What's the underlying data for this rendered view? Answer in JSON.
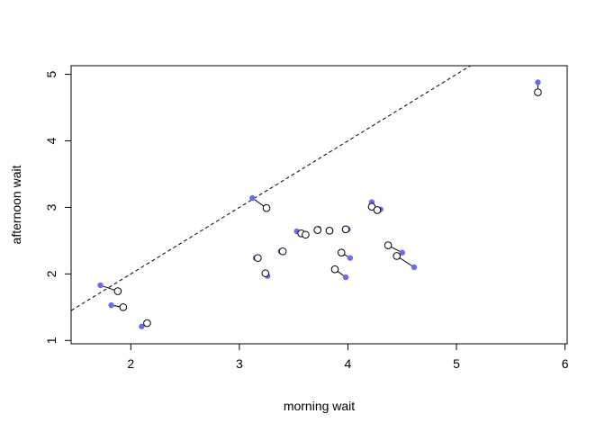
{
  "chart_data": {
    "type": "scatter",
    "title": "",
    "xlabel": "morning wait",
    "ylabel": "afternoon wait",
    "xlim": [
      1.45,
      6.02
    ],
    "ylim": [
      0.95,
      5.13
    ],
    "xticks": [
      2,
      3,
      4,
      5,
      6
    ],
    "yticks": [
      1,
      2,
      3,
      4,
      5
    ],
    "grid": false,
    "legend": "none",
    "reference_line": {
      "style": "dashed",
      "intercept": 0,
      "slope": 1
    },
    "colors": {
      "filled": "#6b6bf0",
      "open": "#000000",
      "segment": "#000000",
      "reference": "#000000"
    },
    "series": [
      {
        "marker": "filled-circle",
        "points": [
          {
            "x": 1.72,
            "y": 1.83
          },
          {
            "x": 1.82,
            "y": 1.53
          },
          {
            "x": 2.1,
            "y": 1.21
          },
          {
            "x": 3.12,
            "y": 3.14
          },
          {
            "x": 3.15,
            "y": 2.24
          },
          {
            "x": 3.26,
            "y": 1.97
          },
          {
            "x": 3.38,
            "y": 2.34
          },
          {
            "x": 3.53,
            "y": 2.64
          },
          {
            "x": 3.6,
            "y": 2.6
          },
          {
            "x": 3.73,
            "y": 2.68
          },
          {
            "x": 3.84,
            "y": 2.65
          },
          {
            "x": 4.0,
            "y": 2.67
          },
          {
            "x": 4.02,
            "y": 2.24
          },
          {
            "x": 3.98,
            "y": 1.95
          },
          {
            "x": 4.22,
            "y": 3.08
          },
          {
            "x": 4.3,
            "y": 2.97
          },
          {
            "x": 4.5,
            "y": 2.32
          },
          {
            "x": 4.61,
            "y": 2.1
          },
          {
            "x": 5.75,
            "y": 4.88
          }
        ]
      },
      {
        "marker": "open-circle",
        "points": [
          {
            "x": 1.88,
            "y": 1.74
          },
          {
            "x": 1.93,
            "y": 1.5
          },
          {
            "x": 2.15,
            "y": 1.26
          },
          {
            "x": 3.25,
            "y": 2.99
          },
          {
            "x": 3.17,
            "y": 2.24
          },
          {
            "x": 3.24,
            "y": 2.01
          },
          {
            "x": 3.4,
            "y": 2.34
          },
          {
            "x": 3.57,
            "y": 2.61
          },
          {
            "x": 3.61,
            "y": 2.59
          },
          {
            "x": 3.72,
            "y": 2.66
          },
          {
            "x": 3.83,
            "y": 2.65
          },
          {
            "x": 3.98,
            "y": 2.67
          },
          {
            "x": 3.94,
            "y": 2.32
          },
          {
            "x": 3.88,
            "y": 2.07
          },
          {
            "x": 4.22,
            "y": 3.01
          },
          {
            "x": 4.27,
            "y": 2.96
          },
          {
            "x": 4.37,
            "y": 2.43
          },
          {
            "x": 4.45,
            "y": 2.27
          },
          {
            "x": 5.75,
            "y": 4.73
          }
        ]
      }
    ]
  }
}
